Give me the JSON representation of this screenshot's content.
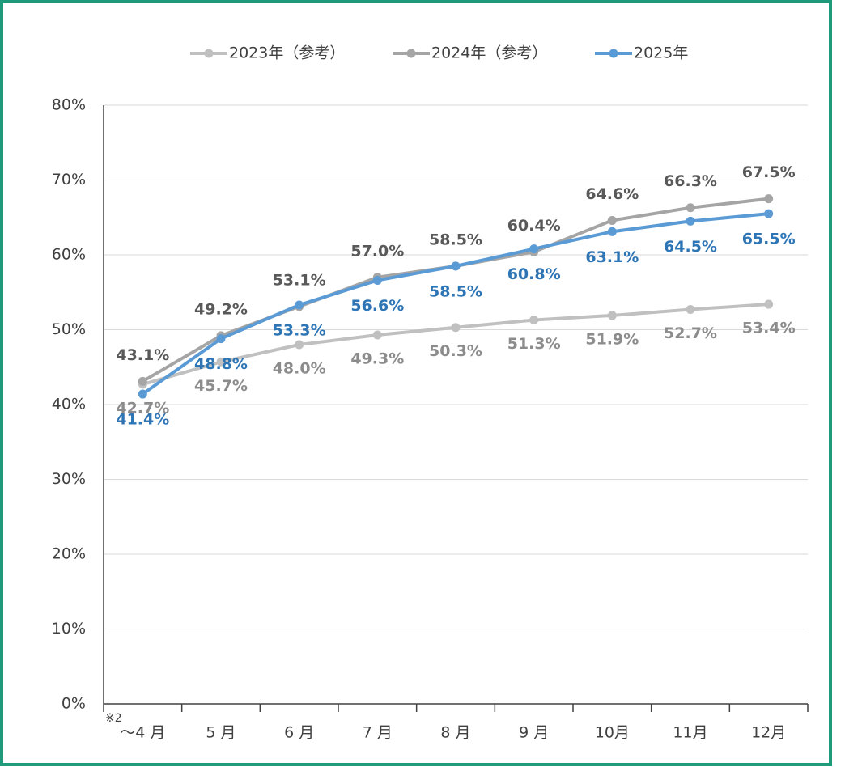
{
  "chart_data": {
    "type": "line",
    "categories": [
      "〜4 月",
      "5 月",
      "6 月",
      "7 月",
      "8 月",
      "9 月",
      "10月",
      "11月",
      "12月"
    ],
    "annotations": [
      "※2"
    ],
    "series": [
      {
        "name": "2023年（参考）",
        "color": "#c0c0c0",
        "label_color": "#8c8c8c",
        "values": [
          42.7,
          45.7,
          48.0,
          49.3,
          50.3,
          51.3,
          51.9,
          52.7,
          53.4
        ],
        "value_labels": [
          "42.7%",
          "45.7%",
          "48.0%",
          "49.3%",
          "50.3%",
          "51.3%",
          "51.9%",
          "52.7%",
          "53.4%"
        ]
      },
      {
        "name": "2024年（参考）",
        "color": "#a5a5a5",
        "label_color": "#595959",
        "values": [
          43.1,
          49.2,
          53.1,
          57.0,
          58.5,
          60.4,
          64.6,
          66.3,
          67.5
        ],
        "value_labels": [
          "43.1%",
          "49.2%",
          "53.1%",
          "57.0%",
          "58.5%",
          "60.4%",
          "64.6%",
          "66.3%",
          "67.5%"
        ]
      },
      {
        "name": "2025年",
        "color": "#5b9bd5",
        "label_color": "#2e75b6",
        "values": [
          41.4,
          48.8,
          53.3,
          56.6,
          58.5,
          60.8,
          63.1,
          64.5,
          65.5
        ],
        "value_labels": [
          "41.4%",
          "48.8%",
          "53.3%",
          "56.6%",
          "58.5%",
          "60.8%",
          "63.1%",
          "64.5%",
          "65.5%"
        ]
      }
    ],
    "ylim": [
      0,
      80
    ],
    "yticks": [
      {
        "value": 0,
        "label": "0%"
      },
      {
        "value": 10,
        "label": "10%"
      },
      {
        "value": 20,
        "label": "20%"
      },
      {
        "value": 30,
        "label": "30%"
      },
      {
        "value": 40,
        "label": "40%"
      },
      {
        "value": 50,
        "label": "50%"
      },
      {
        "value": 60,
        "label": "60%"
      },
      {
        "value": 70,
        "label": "70%"
      },
      {
        "value": 80,
        "label": "80%"
      }
    ],
    "grid": true,
    "legend": "top"
  }
}
